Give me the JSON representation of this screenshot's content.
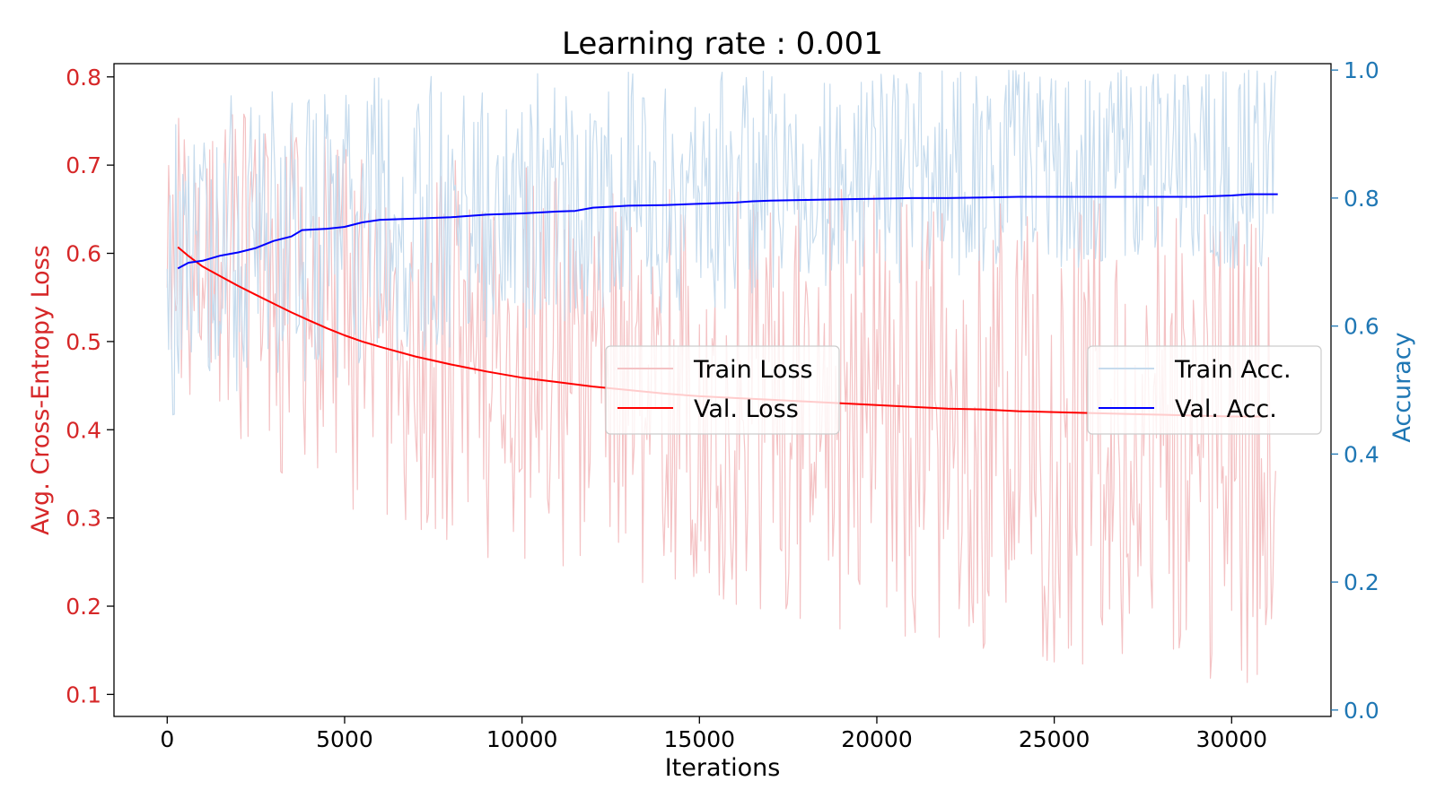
{
  "chart_data": {
    "type": "line",
    "title": "Learning rate : 0.001",
    "xlabel": "Iterations",
    "ylabel_left": "Avg. Cross-Entropy Loss",
    "ylabel_right": "Accuracy",
    "xlim": [
      -1500,
      32800
    ],
    "ylim_left": [
      0.075,
      0.815
    ],
    "ylim_right": [
      -0.01,
      1.01
    ],
    "x_ticks": [
      0,
      5000,
      10000,
      15000,
      20000,
      25000,
      30000
    ],
    "y_left_ticks": [
      0.1,
      0.2,
      0.3,
      0.4,
      0.5,
      0.6,
      0.7,
      0.8
    ],
    "y_right_ticks": [
      0.0,
      0.2,
      0.4,
      0.6,
      0.8,
      1.0
    ],
    "grid": false,
    "colors": {
      "train_loss": "#f4c2c4",
      "val_loss": "#ff0000",
      "train_acc": "#c6dbed",
      "val_acc": "#0000ff",
      "left_axis": "#d62728",
      "right_axis": "#1f77b4"
    },
    "legend_left": {
      "placement": "center",
      "entries": [
        {
          "label": "Train Loss",
          "series": "train_loss"
        },
        {
          "label": "Val. Loss",
          "series": "val_loss"
        }
      ]
    },
    "legend_right": {
      "placement": "center-right",
      "entries": [
        {
          "label": "Train Acc.",
          "series": "train_acc"
        },
        {
          "label": "Val. Acc.",
          "series": "val_acc"
        }
      ]
    },
    "series": [
      {
        "name": "Train Loss",
        "axis": "left",
        "style": "noisy-band",
        "x": [
          0,
          1000,
          2000,
          4000,
          6000,
          8000,
          10000,
          12000,
          14000,
          16000,
          18000,
          20000,
          22000,
          24000,
          26000,
          28000,
          30000,
          31250
        ],
        "low": [
          0.45,
          0.4,
          0.37,
          0.32,
          0.29,
          0.27,
          0.24,
          0.22,
          0.21,
          0.2,
          0.18,
          0.16,
          0.15,
          0.14,
          0.13,
          0.12,
          0.115,
          0.11
        ],
        "high": [
          0.76,
          0.78,
          0.77,
          0.74,
          0.72,
          0.71,
          0.7,
          0.69,
          0.69,
          0.68,
          0.68,
          0.67,
          0.67,
          0.66,
          0.66,
          0.66,
          0.65,
          0.64
        ],
        "band_low": [
          0.5,
          0.48,
          0.46,
          0.42,
          0.39,
          0.37,
          0.35,
          0.33,
          0.31,
          0.3,
          0.28,
          0.27,
          0.26,
          0.25,
          0.24,
          0.23,
          0.22,
          0.21
        ],
        "band_high": [
          0.7,
          0.71,
          0.7,
          0.66,
          0.63,
          0.6,
          0.59,
          0.59,
          0.58,
          0.58,
          0.58,
          0.58,
          0.58,
          0.58,
          0.58,
          0.58,
          0.58,
          0.58
        ]
      },
      {
        "name": "Val. Loss",
        "axis": "left",
        "style": "line",
        "x": [
          300,
          600,
          1000,
          1500,
          2000,
          2500,
          3000,
          3500,
          4000,
          4500,
          5000,
          5500,
          6000,
          7000,
          8000,
          9000,
          10000,
          11000,
          12000,
          13000,
          14000,
          15000,
          16000,
          17000,
          18000,
          19000,
          20000,
          21000,
          22000,
          23000,
          24000,
          25000,
          26000,
          27000,
          28000,
          29000,
          30000,
          31000
        ],
        "values": [
          0.607,
          0.597,
          0.585,
          0.574,
          0.563,
          0.553,
          0.543,
          0.533,
          0.524,
          0.515,
          0.507,
          0.5,
          0.494,
          0.483,
          0.474,
          0.466,
          0.459,
          0.454,
          0.449,
          0.445,
          0.441,
          0.438,
          0.436,
          0.434,
          0.432,
          0.43,
          0.428,
          0.426,
          0.424,
          0.423,
          0.421,
          0.42,
          0.419,
          0.418,
          0.417,
          0.416,
          0.415,
          0.415
        ]
      },
      {
        "name": "Train Acc.",
        "axis": "right",
        "style": "noisy-band",
        "x": [
          0,
          1000,
          2000,
          4000,
          6000,
          8000,
          10000,
          12000,
          14000,
          16000,
          18000,
          20000,
          22000,
          24000,
          26000,
          28000,
          30000,
          31250
        ],
        "low": [
          0.44,
          0.47,
          0.5,
          0.5,
          0.53,
          0.56,
          0.59,
          0.62,
          0.62,
          0.62,
          0.66,
          0.66,
          0.66,
          0.69,
          0.69,
          0.69,
          0.69,
          0.69
        ],
        "high": [
          0.91,
          0.94,
          0.97,
          0.97,
          1.0,
          1.0,
          1.0,
          1.0,
          1.0,
          1.0,
          1.0,
          1.0,
          1.0,
          1.0,
          1.0,
          1.0,
          1.0,
          1.0
        ],
        "band_low": [
          0.56,
          0.56,
          0.59,
          0.59,
          0.62,
          0.62,
          0.66,
          0.66,
          0.69,
          0.69,
          0.69,
          0.72,
          0.72,
          0.72,
          0.72,
          0.72,
          0.72,
          0.72
        ],
        "band_high": [
          0.84,
          0.84,
          0.88,
          0.91,
          0.91,
          0.91,
          0.91,
          0.91,
          0.91,
          0.91,
          0.97,
          0.97,
          0.97,
          0.97,
          0.97,
          0.97,
          0.97,
          0.97
        ]
      },
      {
        "name": "Val. Acc.",
        "axis": "right",
        "style": "line",
        "x": [
          300,
          600,
          1000,
          1500,
          2000,
          2500,
          3000,
          3500,
          3800,
          4500,
          5000,
          5500,
          6000,
          7000,
          8000,
          9000,
          10000,
          11000,
          11500,
          12000,
          13000,
          14000,
          15000,
          16000,
          16500,
          17000,
          18000,
          19000,
          20000,
          21000,
          22000,
          23000,
          24000,
          25000,
          26000,
          27000,
          28000,
          29000,
          30000,
          30500,
          31000,
          31300
        ],
        "values": [
          0.69,
          0.699,
          0.702,
          0.71,
          0.715,
          0.722,
          0.733,
          0.74,
          0.75,
          0.752,
          0.755,
          0.762,
          0.766,
          0.768,
          0.77,
          0.774,
          0.776,
          0.779,
          0.78,
          0.785,
          0.788,
          0.789,
          0.791,
          0.793,
          0.795,
          0.796,
          0.797,
          0.798,
          0.799,
          0.8,
          0.8,
          0.801,
          0.802,
          0.802,
          0.802,
          0.802,
          0.802,
          0.802,
          0.804,
          0.806,
          0.806,
          0.806
        ]
      }
    ]
  }
}
